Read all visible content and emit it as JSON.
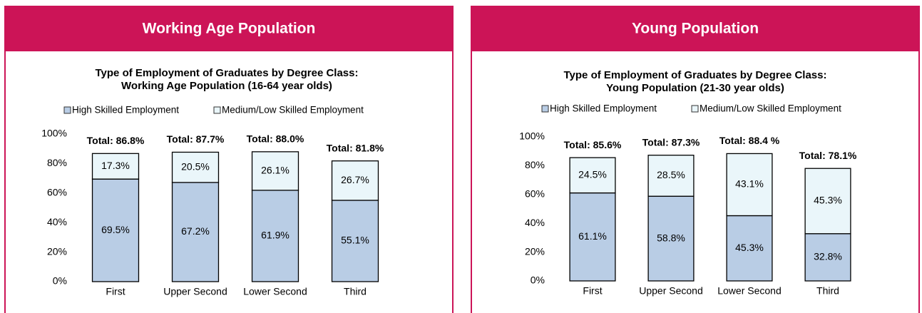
{
  "panel_titles": [
    "Working Age Population",
    "Young Population"
  ],
  "chart_data": [
    {
      "type": "bar",
      "stacked": true,
      "title": [
        "Type of Employment of Graduates by Degree Class:",
        "Working Age Population (16-64 year olds)"
      ],
      "categories": [
        "First",
        "Upper Second",
        "Lower Second",
        "Third"
      ],
      "series": [
        {
          "name": "High Skilled Employment",
          "color": "#b9cde5",
          "values": [
            69.5,
            67.2,
            61.9,
            55.1
          ],
          "value_labels": [
            "69.5%",
            "67.2%",
            "61.9%",
            "55.1%"
          ]
        },
        {
          "name": "Medium/Low Skilled Employment",
          "color": "#eaf6fa",
          "values": [
            17.3,
            20.5,
            26.1,
            26.7
          ],
          "value_labels": [
            "17.3%",
            "20.5%",
            "26.1%",
            "26.7%"
          ]
        }
      ],
      "totals": [
        86.8,
        87.7,
        88.0,
        81.8
      ],
      "total_labels": [
        "Total: 86.8%",
        "Total: 87.7%",
        "Total: 88.0%",
        "Total: 81.8%"
      ],
      "ylim": [
        0,
        100
      ],
      "yticks": [
        {
          "value": 0,
          "label": "0%"
        },
        {
          "value": 20,
          "label": "20%"
        },
        {
          "value": 40,
          "label": "40%"
        },
        {
          "value": 60,
          "label": "60%"
        },
        {
          "value": 80,
          "label": "80%"
        },
        {
          "value": 100,
          "label": "100%"
        }
      ],
      "legend": "top"
    },
    {
      "type": "bar",
      "stacked": true,
      "title": [
        "Type of Employment of Graduates by Degree Class:",
        "Young Population (21-30 year olds)"
      ],
      "categories": [
        "First",
        "Upper Second",
        "Lower Second",
        "Third"
      ],
      "series": [
        {
          "name": "High Skilled Employment",
          "color": "#b9cde5",
          "values": [
            61.1,
            58.8,
            45.3,
            32.8
          ],
          "value_labels": [
            "61.1%",
            "58.8%",
            "45.3%",
            "32.8%"
          ]
        },
        {
          "name": "Medium/Low Skilled Employment",
          "color": "#eaf6fa",
          "values": [
            24.5,
            28.5,
            43.1,
            45.3
          ],
          "value_labels": [
            "24.5%",
            "28.5%",
            "43.1%",
            "45.3%"
          ]
        }
      ],
      "totals": [
        85.6,
        87.3,
        88.4,
        78.1
      ],
      "total_labels": [
        "Total: 85.6%",
        "Total: 87.3%",
        "Total: 88.4 %",
        "Total: 78.1%"
      ],
      "ylim": [
        0,
        100
      ],
      "yticks": [
        {
          "value": 0,
          "label": "0%"
        },
        {
          "value": 20,
          "label": "20%"
        },
        {
          "value": 40,
          "label": "40%"
        },
        {
          "value": 60,
          "label": "60%"
        },
        {
          "value": 80,
          "label": "80%"
        },
        {
          "value": 100,
          "label": "100%"
        }
      ],
      "legend": "top"
    }
  ]
}
